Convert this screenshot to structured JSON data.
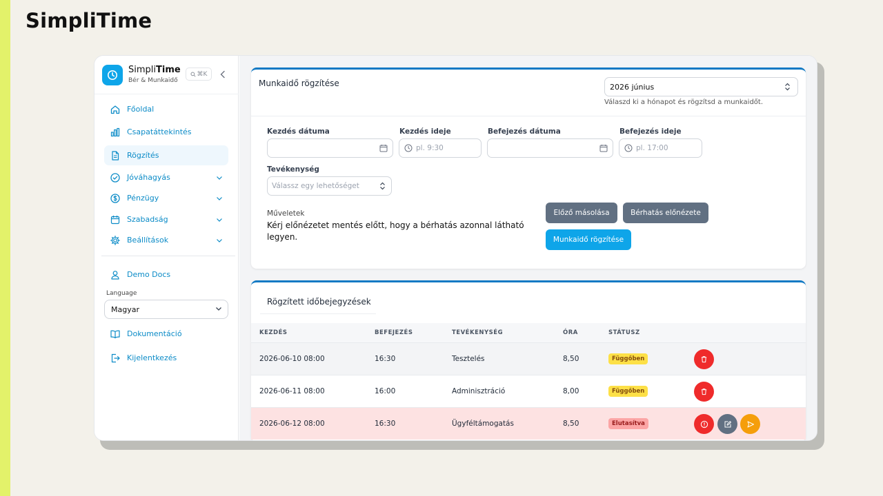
{
  "page_heading": "SimpliTime",
  "brand": {
    "name_regular": "Simpli",
    "name_bold": "Time",
    "subtitle": "Bér & Munkaidő",
    "shortcut": "⌘K"
  },
  "sidebar": {
    "items": [
      {
        "label": "Főoldal",
        "icon": "home-icon"
      },
      {
        "label": "Csapatáttekintés",
        "icon": "bar-chart-icon"
      },
      {
        "label": "Rögzítés",
        "icon": "document-icon",
        "active": true
      },
      {
        "label": "Jóváhagyás",
        "icon": "check-circle-icon",
        "expandable": true
      },
      {
        "label": "Pénzügy",
        "icon": "dollar-icon",
        "expandable": true
      },
      {
        "label": "Szabadság",
        "icon": "calendar-icon",
        "expandable": true
      },
      {
        "label": "Beállítások",
        "icon": "gear-icon",
        "expandable": true
      }
    ],
    "demo_docs": "Demo Docs",
    "language_label": "Language",
    "language_value": "Magyar",
    "docs": "Dokumentáció",
    "logout": "Kijelentkezés"
  },
  "entry_form": {
    "title": "Munkaidő rögzítése",
    "month_value": "2026 június",
    "month_hint": "Válaszd ki a hónapot és rögzítsd a munkaidőt.",
    "start_date_label": "Kezdés dátuma",
    "start_date_value": "",
    "start_time_label": "Kezdés ideje",
    "start_time_placeholder": "pl. 9:30",
    "end_date_label": "Befejezés dátuma",
    "end_date_value": "",
    "end_time_label": "Befejezés ideje",
    "end_time_placeholder": "pl. 17:00",
    "activity_label": "Tevékenység",
    "activity_placeholder": "Válassz egy lehetőséget",
    "ops_label": "Műveletek",
    "ops_text": "Kérj előnézetet mentés előtt, hogy a bérhatás azonnal látható legyen.",
    "copy_prev_button": "Előző másolása",
    "preview_button": "Bérhatás előnézete",
    "submit_button": "Munkaidő rögzítése"
  },
  "entries": {
    "title": "Rögzített időbejegyzések",
    "columns": [
      "KEZDÉS",
      "BEFEJEZÉS",
      "TEVÉKENYSÉG",
      "ÓRA",
      "STÁTUSZ"
    ],
    "rows": [
      {
        "start": "2026-06-10 08:00",
        "end": "16:30",
        "activity": "Tesztelés",
        "hours": "8,50",
        "status": "Függőben",
        "status_kind": "pending"
      },
      {
        "start": "2026-06-11 08:00",
        "end": "16:00",
        "activity": "Adminisztráció",
        "hours": "8,00",
        "status": "Függőben",
        "status_kind": "pending"
      },
      {
        "start": "2026-06-12 08:00",
        "end": "16:30",
        "activity": "Ügyféltámogatás",
        "hours": "8,50",
        "status": "Elutasítva",
        "status_kind": "rejected"
      }
    ]
  },
  "colors": {
    "accent": "#0ea5e9",
    "card_top": "#1079c4",
    "danger": "#ef2b2b",
    "gray_button": "#617082",
    "warning": "#f59e0b",
    "rejected_row": "#fde2e2",
    "hover_row": "#f3f4f6"
  }
}
